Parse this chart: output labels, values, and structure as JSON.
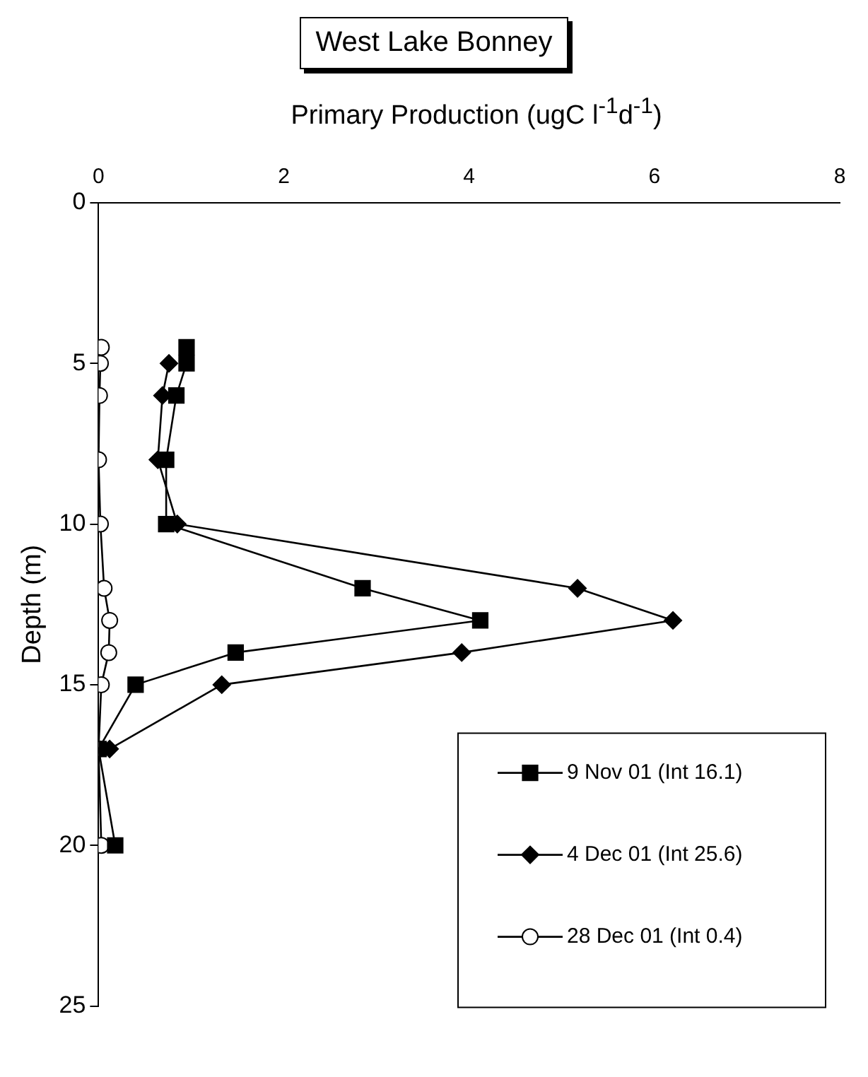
{
  "chart_data": {
    "type": "line",
    "title": "West Lake Bonney",
    "xlabel": "Primary Production (ugC l$^{-1}$d$^{-1}$)",
    "ylabel": "Depth (m)",
    "xlim": [
      0,
      8
    ],
    "xticks": [
      0,
      2,
      4,
      6,
      8
    ],
    "ylim": [
      25,
      0
    ],
    "yticks": [
      0,
      5,
      10,
      15,
      20,
      25
    ],
    "grid": false,
    "legend": "bottom right",
    "line_style": "solid",
    "series": [
      {
        "name": "9 Nov 01 (Int 16.1)",
        "color": "#000000",
        "marker": "square",
        "x": [
          0.95,
          0.95,
          0.84,
          0.73,
          0.73,
          2.85,
          4.12,
          1.48,
          0.4,
          0.0,
          0.18
        ],
        "values": [
          4.5,
          5,
          6,
          8,
          10,
          12,
          13,
          14,
          15,
          17,
          20
        ]
      },
      {
        "name": "4 Dec 01 (Int 25.6)",
        "color": "#000000",
        "marker": "diamond",
        "x": [
          0.76,
          0.69,
          0.64,
          0.85,
          5.17,
          6.2,
          3.92,
          1.33,
          0.12
        ],
        "values": [
          5,
          6,
          8,
          10,
          12,
          13,
          14,
          15,
          17
        ]
      },
      {
        "name": "28 Dec 01 (Int 0.4)",
        "color": "#000000",
        "marker": "circle",
        "x": [
          0.03,
          0.02,
          0.01,
          0,
          0.02,
          0.06,
          0.12,
          0.11,
          0.03,
          0,
          0.03
        ],
        "values": [
          4.5,
          5,
          6,
          8,
          10,
          12,
          13,
          14,
          15,
          17,
          20
        ]
      }
    ]
  }
}
